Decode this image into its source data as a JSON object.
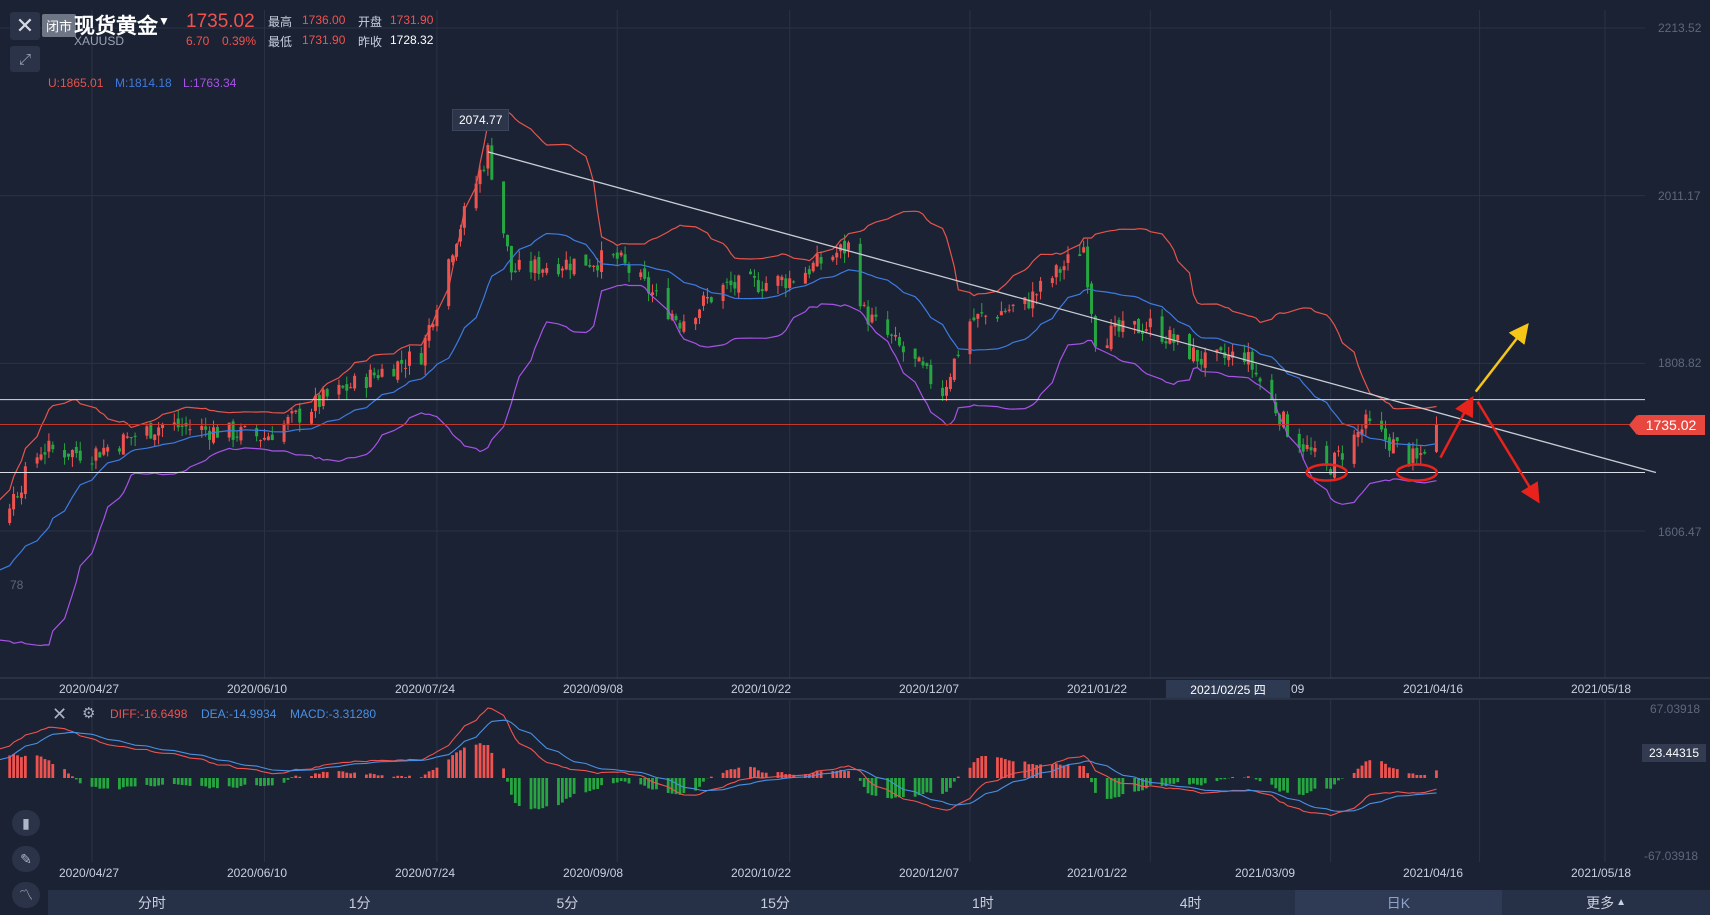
{
  "header": {
    "market_status": "闭市",
    "symbol_name": "现货黄金",
    "symbol_code": "XAUUSD",
    "last_price": "1735.02",
    "change": "6.70",
    "change_pct": "0.39%",
    "stats": {
      "high_label": "最高",
      "high": "1736.00",
      "open_label": "开盘",
      "open": "1731.90",
      "low_label": "最低",
      "low": "1731.90",
      "prev_close_label": "昨收",
      "prev_close": "1728.32"
    }
  },
  "bollinger": {
    "upper": "U:1865.01",
    "middle": "M:1814.18",
    "lower": "L:1763.34"
  },
  "price_axis": [
    "2213.52",
    "2011.17",
    "1808.82",
    "1606.47"
  ],
  "price_axis_partial": "78",
  "last_price_tag": "1735.02",
  "peak_label": "2074.77",
  "crosshair_date": "2021/02/25 四",
  "date_axis": [
    "2020/04/27",
    "2020/06/10",
    "2020/07/24",
    "2020/09/08",
    "2020/10/22",
    "2020/12/07",
    "2021/01/22",
    "2021/03/09",
    "2021/04/16",
    "2021/05/18"
  ],
  "top_date_partial": "09",
  "macd": {
    "diff": "DIFF:-16.6498",
    "dea": "DEA:-14.9934",
    "macd": "MACD:-3.31280",
    "axis_top": "67.03918",
    "axis_tag": "23.44315",
    "axis_bottom": "-67.03918"
  },
  "periods": [
    "分时",
    "1分",
    "5分",
    "15分",
    "1时",
    "4时",
    "日K",
    "更多"
  ],
  "active_period": "日K",
  "colors": {
    "background": "#1b2233",
    "up": "#ef5350",
    "down": "#26a641",
    "boll_upper": "#e5544b",
    "boll_middle": "#3d7be0",
    "boll_lower": "#a653e6",
    "annotation_red": "#e8231c",
    "annotation_yellow": "#f5c518"
  },
  "chart_data": {
    "type": "candlestick",
    "symbol": "XAUUSD",
    "y_ticks": [
      1606.47,
      1808.82,
      2011.17,
      2213.52
    ],
    "ylim": [
      1420,
      2230
    ],
    "x_range": [
      "2020/03/20",
      "2021/05/31"
    ],
    "x_ticks": [
      "2020/04/27",
      "2020/06/10",
      "2020/07/24",
      "2020/09/08",
      "2020/10/22",
      "2020/12/07",
      "2021/01/22",
      "2021/03/09",
      "2021/04/16",
      "2021/05/18"
    ],
    "close_path": [
      [
        "2020/03/20",
        1490
      ],
      [
        "2020/04/01",
        1600
      ],
      [
        "2020/04/14",
        1705
      ],
      [
        "2020/04/27",
        1700
      ],
      [
        "2020/05/15",
        1735
      ],
      [
        "2020/06/10",
        1720
      ],
      [
        "2020/06/25",
        1765
      ],
      [
        "2020/07/10",
        1800
      ],
      [
        "2020/07/20",
        1820
      ],
      [
        "2020/07/28",
        1950
      ],
      [
        "2020/08/06",
        2065
      ],
      [
        "2020/08/12",
        1920
      ],
      [
        "2020/08/25",
        1930
      ],
      [
        "2020/09/08",
        1935
      ],
      [
        "2020/09/24",
        1860
      ],
      [
        "2020/10/05",
        1900
      ],
      [
        "2020/10/22",
        1910
      ],
      [
        "2020/11/06",
        1950
      ],
      [
        "2020/11/10",
        1870
      ],
      [
        "2020/11/30",
        1775
      ],
      [
        "2020/12/07",
        1860
      ],
      [
        "2020/12/21",
        1880
      ],
      [
        "2021/01/05",
        1950
      ],
      [
        "2021/01/08",
        1840
      ],
      [
        "2021/01/22",
        1855
      ],
      [
        "2021/02/05",
        1810
      ],
      [
        "2021/02/15",
        1820
      ],
      [
        "2021/02/26",
        1730
      ],
      [
        "2021/03/08",
        1680
      ],
      [
        "2021/03/18",
        1735
      ],
      [
        "2021/03/31",
        1690
      ],
      [
        "2021/04/05",
        1735.02
      ]
    ],
    "peak": {
      "date": "2020/08/06",
      "value": 2074.77
    },
    "last_close": 1735.02,
    "horizontal_levels": [
      1765,
      1677
    ],
    "trendline": [
      [
        "2020/08/06",
        2064
      ],
      [
        "2021/05/31",
        1677
      ]
    ],
    "double_bottom": [
      "2021/03/08",
      "2021/03/31"
    ],
    "scenario_up_arrow": true,
    "scenario_down_arrow": true,
    "bollinger_last": {
      "upper": 1865.01,
      "middle": 1814.18,
      "lower": 1763.34
    }
  }
}
